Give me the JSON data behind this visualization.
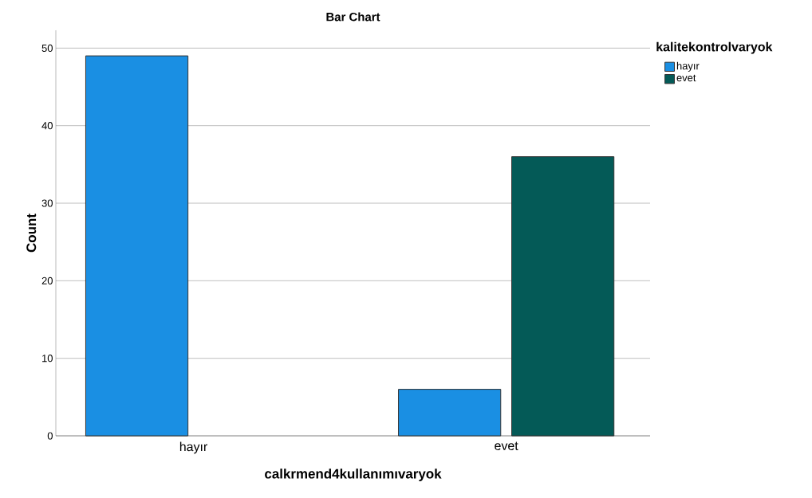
{
  "chart_data": {
    "type": "bar",
    "title": "Bar Chart",
    "xlabel": "calkrmend4kullanımıvaryok",
    "ylabel": "Count",
    "legend_title": "kalitekontrolvaryok",
    "categories": [
      "hayır",
      "evet"
    ],
    "series": [
      {
        "name": "hayır",
        "color": "#1a8fe3",
        "values": [
          49,
          6
        ]
      },
      {
        "name": "evet",
        "color": "#045a57",
        "values": [
          null,
          36
        ]
      }
    ],
    "ylim": [
      0,
      52.3
    ],
    "yticks": [
      0,
      10,
      20,
      30,
      40,
      50
    ],
    "grid": "y",
    "legend": "top right"
  }
}
